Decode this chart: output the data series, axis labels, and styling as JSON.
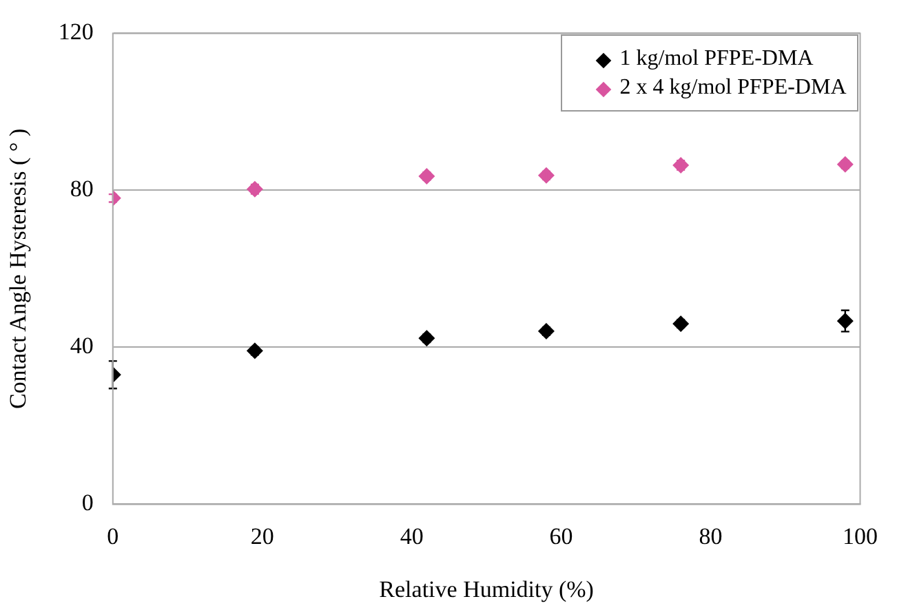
{
  "chart_data": {
    "type": "scatter",
    "xlabel": "Relative Humidity (%)",
    "ylabel": "Contact Angle Hysteresis ( ° )",
    "xlim": [
      0,
      100
    ],
    "xticks": [
      0,
      20,
      40,
      60,
      80,
      100
    ],
    "ylim": [
      0,
      120
    ],
    "yticks": [
      0,
      40,
      80,
      120
    ],
    "grid": "y",
    "legend": "top right",
    "marker": "diamond",
    "series": [
      {
        "name": "1 kg/mol PFPE-DMA",
        "color": "#000000",
        "x": [
          0,
          19,
          42,
          58,
          76,
          98
        ],
        "values": [
          33,
          39.1,
          42.3,
          44.1,
          46,
          46.7
        ],
        "errors": [
          3.5,
          1,
          1,
          1,
          1,
          2.7
        ]
      },
      {
        "name": "2 x 4 kg/mol PFPE-DMA",
        "color": "#d9549f",
        "x": [
          0,
          19,
          42,
          58,
          76,
          98
        ],
        "values": [
          78,
          80.3,
          83.6,
          83.8,
          86.4,
          86.6
        ],
        "errors": [
          1,
          1.2,
          1,
          1,
          1.2,
          1
        ]
      }
    ]
  }
}
